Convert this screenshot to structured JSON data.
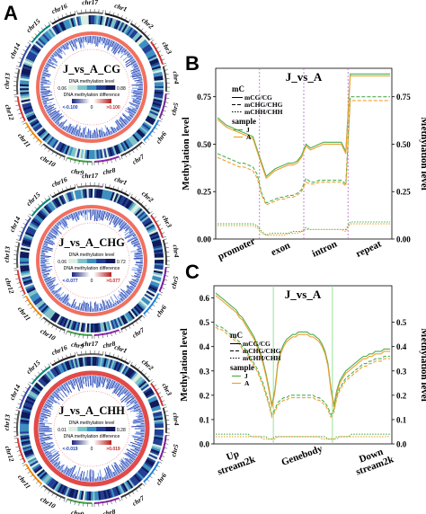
{
  "panel_a": {
    "letter": "A",
    "circos": [
      {
        "title": "J_vs_A_CG",
        "level_label": "DNA methylation level",
        "level_min": "0.06",
        "level_max": "0.88",
        "diff_label": "DNA methylation difference",
        "diff_min": "<-0.100",
        "diff_zero": "0",
        "diff_max": ">0.100",
        "level_colors": [
          "#dbeee1",
          "#7fc3c9",
          "#3c8fc0",
          "#223f95",
          "#101a5a"
        ]
      },
      {
        "title": "J_vs_A_CHG",
        "level_label": "DNA methylation level",
        "level_min": "0.06",
        "level_max": "0.72",
        "diff_label": "DNA methylation difference",
        "diff_min": "<-0.077",
        "diff_zero": "0",
        "diff_max": ">0.077",
        "level_colors": [
          "#dbeee1",
          "#7fc3c9",
          "#3c8fc0",
          "#223f95",
          "#101a5a"
        ]
      },
      {
        "title": "J_vs_A_CHH",
        "level_label": "DNA methylation level",
        "level_min": "0.01",
        "level_max": "0.28",
        "diff_label": "DNA methylation difference",
        "diff_min": "<-0.019",
        "diff_zero": "0",
        "diff_max": ">0.019",
        "level_colors": [
          "#dbeee1",
          "#7fc3c9",
          "#3c8fc0",
          "#223f95",
          "#101a5a"
        ]
      }
    ],
    "chromosomes": [
      "chr1",
      "chr2",
      "chr3",
      "chr4",
      "chr5",
      "chr6",
      "chr7",
      "chr8",
      "chr9",
      "chr10",
      "chr11",
      "chr12",
      "chr13",
      "chr14",
      "chr15",
      "chr16",
      "chr17"
    ]
  },
  "chart_data": [
    {
      "type": "line",
      "panel": "B",
      "title": "J_vs_A",
      "ylabel": "Methylation level",
      "y2label": "Methylation level",
      "ylim": [
        0,
        0.9
      ],
      "yticks": [
        "0.00",
        "0.25",
        "0.50",
        "0.75"
      ],
      "regions": [
        "promoter",
        "exon",
        "intron",
        "repeat"
      ],
      "x_points_per_region": 10,
      "legend": {
        "mc_title": "mC",
        "mc_entries": [
          "mCG/CG",
          "mCHG/CHG",
          "mCHH/CHH"
        ],
        "sample_title": "sample",
        "sample_entries": [
          "J",
          "A"
        ]
      },
      "colors": {
        "J": "#4caf50",
        "A": "#f0a030",
        "divider": "#b366cc"
      },
      "series": [
        {
          "context": "mCG",
          "sample": "J",
          "values": [
            0.64,
            0.62,
            0.6,
            0.59,
            0.58,
            0.57,
            0.56,
            0.55,
            0.54,
            0.47,
            0.4,
            0.33,
            0.35,
            0.37,
            0.38,
            0.39,
            0.4,
            0.4,
            0.41,
            0.44,
            0.5,
            0.48,
            0.49,
            0.5,
            0.51,
            0.51,
            0.51,
            0.51,
            0.51,
            0.46,
            0.87,
            0.87,
            0.87,
            0.87,
            0.87,
            0.87,
            0.87,
            0.87,
            0.87,
            0.87
          ]
        },
        {
          "context": "mCG",
          "sample": "A",
          "values": [
            0.63,
            0.61,
            0.59,
            0.58,
            0.57,
            0.56,
            0.55,
            0.54,
            0.53,
            0.46,
            0.39,
            0.32,
            0.34,
            0.36,
            0.37,
            0.38,
            0.39,
            0.39,
            0.4,
            0.43,
            0.49,
            0.47,
            0.48,
            0.49,
            0.5,
            0.5,
            0.5,
            0.5,
            0.5,
            0.45,
            0.86,
            0.86,
            0.86,
            0.86,
            0.86,
            0.86,
            0.86,
            0.86,
            0.86,
            0.86
          ]
        },
        {
          "context": "mCHG",
          "sample": "J",
          "values": [
            0.45,
            0.44,
            0.43,
            0.42,
            0.41,
            0.4,
            0.4,
            0.39,
            0.38,
            0.34,
            0.24,
            0.19,
            0.2,
            0.21,
            0.22,
            0.22,
            0.23,
            0.23,
            0.24,
            0.26,
            0.32,
            0.3,
            0.3,
            0.31,
            0.31,
            0.31,
            0.31,
            0.31,
            0.31,
            0.29,
            0.75,
            0.75,
            0.75,
            0.75,
            0.75,
            0.75,
            0.75,
            0.75,
            0.75,
            0.75
          ]
        },
        {
          "context": "mCHG",
          "sample": "A",
          "values": [
            0.43,
            0.42,
            0.41,
            0.4,
            0.39,
            0.38,
            0.38,
            0.37,
            0.36,
            0.32,
            0.23,
            0.18,
            0.19,
            0.2,
            0.21,
            0.21,
            0.22,
            0.22,
            0.23,
            0.25,
            0.3,
            0.29,
            0.29,
            0.3,
            0.3,
            0.3,
            0.3,
            0.3,
            0.3,
            0.28,
            0.73,
            0.73,
            0.73,
            0.73,
            0.73,
            0.73,
            0.73,
            0.73,
            0.73,
            0.73
          ]
        },
        {
          "context": "mCHH",
          "sample": "J",
          "values": [
            0.08,
            0.08,
            0.08,
            0.08,
            0.08,
            0.08,
            0.08,
            0.08,
            0.08,
            0.07,
            0.04,
            0.02,
            0.03,
            0.03,
            0.03,
            0.03,
            0.03,
            0.04,
            0.04,
            0.04,
            0.06,
            0.05,
            0.05,
            0.05,
            0.05,
            0.05,
            0.05,
            0.05,
            0.05,
            0.05,
            0.09,
            0.09,
            0.09,
            0.09,
            0.09,
            0.09,
            0.09,
            0.09,
            0.09,
            0.09
          ]
        },
        {
          "context": "mCHH",
          "sample": "A",
          "values": [
            0.07,
            0.07,
            0.07,
            0.07,
            0.07,
            0.07,
            0.07,
            0.07,
            0.07,
            0.06,
            0.03,
            0.02,
            0.02,
            0.02,
            0.02,
            0.02,
            0.03,
            0.03,
            0.03,
            0.04,
            0.05,
            0.05,
            0.05,
            0.05,
            0.05,
            0.05,
            0.05,
            0.05,
            0.05,
            0.04,
            0.08,
            0.08,
            0.08,
            0.08,
            0.08,
            0.08,
            0.08,
            0.08,
            0.08,
            0.08
          ]
        }
      ]
    },
    {
      "type": "line",
      "panel": "C",
      "title": "J_vs_A",
      "ylabel": "Methylation level",
      "y2label": "Methylation level",
      "ylim": [
        0,
        0.65
      ],
      "yticks": [
        "0.0",
        "0.1",
        "0.2",
        "0.3",
        "0.4",
        "0.5",
        "0.6"
      ],
      "y2ticks": [
        "0.0",
        "0.1",
        "0.2",
        "0.3",
        "0.4",
        "0.5"
      ],
      "x_labels": [
        "Up\nstream2k",
        "Genebody",
        "Down\nstream2k"
      ],
      "x_points": 60,
      "legend": {
        "mc_title": "mC",
        "mc_entries": [
          "mCG/CG",
          "mCHG/CHG",
          "mCHH/CHH"
        ],
        "sample_title": "sample",
        "sample_entries": [
          "J",
          "A"
        ]
      },
      "colors": {
        "J": "#4caf50",
        "A": "#f0a030",
        "divider": "#7ddc7d"
      },
      "series": [
        {
          "context": "mCG",
          "sample": "J",
          "values": [
            0.62,
            0.61,
            0.6,
            0.59,
            0.58,
            0.57,
            0.56,
            0.55,
            0.53,
            0.52,
            0.5,
            0.48,
            0.46,
            0.44,
            0.41,
            0.38,
            0.34,
            0.29,
            0.23,
            0.16,
            0.22,
            0.33,
            0.38,
            0.41,
            0.43,
            0.44,
            0.45,
            0.45,
            0.46,
            0.46,
            0.46,
            0.46,
            0.45,
            0.45,
            0.44,
            0.43,
            0.41,
            0.38,
            0.33,
            0.23,
            0.16,
            0.22,
            0.26,
            0.28,
            0.3,
            0.31,
            0.32,
            0.33,
            0.34,
            0.35,
            0.36,
            0.36,
            0.37,
            0.37,
            0.38,
            0.38,
            0.38,
            0.39,
            0.39,
            0.39
          ]
        },
        {
          "context": "mCG",
          "sample": "A",
          "values": [
            0.61,
            0.6,
            0.59,
            0.58,
            0.57,
            0.56,
            0.55,
            0.54,
            0.52,
            0.51,
            0.49,
            0.47,
            0.45,
            0.43,
            0.4,
            0.37,
            0.33,
            0.28,
            0.22,
            0.15,
            0.21,
            0.32,
            0.37,
            0.4,
            0.42,
            0.43,
            0.44,
            0.44,
            0.45,
            0.45,
            0.45,
            0.45,
            0.44,
            0.44,
            0.43,
            0.42,
            0.4,
            0.37,
            0.32,
            0.22,
            0.15,
            0.21,
            0.25,
            0.27,
            0.29,
            0.3,
            0.31,
            0.32,
            0.33,
            0.34,
            0.35,
            0.35,
            0.36,
            0.36,
            0.37,
            0.37,
            0.37,
            0.38,
            0.38,
            0.38
          ]
        },
        {
          "context": "mCHG",
          "sample": "J",
          "values": [
            0.49,
            0.48,
            0.48,
            0.47,
            0.46,
            0.45,
            0.44,
            0.43,
            0.42,
            0.4,
            0.39,
            0.37,
            0.35,
            0.33,
            0.31,
            0.28,
            0.25,
            0.21,
            0.17,
            0.12,
            0.14,
            0.17,
            0.18,
            0.19,
            0.19,
            0.2,
            0.2,
            0.2,
            0.2,
            0.2,
            0.2,
            0.2,
            0.2,
            0.2,
            0.19,
            0.19,
            0.18,
            0.17,
            0.15,
            0.12,
            0.14,
            0.2,
            0.23,
            0.25,
            0.27,
            0.28,
            0.29,
            0.3,
            0.31,
            0.32,
            0.33,
            0.33,
            0.34,
            0.34,
            0.35,
            0.35,
            0.35,
            0.36,
            0.36,
            0.36
          ]
        },
        {
          "context": "mCHG",
          "sample": "A",
          "values": [
            0.48,
            0.47,
            0.47,
            0.46,
            0.45,
            0.44,
            0.43,
            0.42,
            0.41,
            0.39,
            0.38,
            0.36,
            0.34,
            0.32,
            0.3,
            0.27,
            0.24,
            0.2,
            0.16,
            0.11,
            0.13,
            0.16,
            0.17,
            0.18,
            0.18,
            0.19,
            0.19,
            0.19,
            0.19,
            0.19,
            0.19,
            0.19,
            0.19,
            0.19,
            0.18,
            0.18,
            0.17,
            0.16,
            0.14,
            0.11,
            0.13,
            0.19,
            0.22,
            0.24,
            0.26,
            0.27,
            0.28,
            0.29,
            0.3,
            0.31,
            0.32,
            0.32,
            0.33,
            0.33,
            0.34,
            0.34,
            0.34,
            0.35,
            0.35,
            0.35
          ]
        },
        {
          "context": "mCHH",
          "sample": "J",
          "values": [
            0.04,
            0.04,
            0.04,
            0.04,
            0.04,
            0.04,
            0.04,
            0.04,
            0.04,
            0.04,
            0.04,
            0.04,
            0.03,
            0.03,
            0.03,
            0.03,
            0.03,
            0.03,
            0.02,
            0.02,
            0.03,
            0.03,
            0.03,
            0.03,
            0.03,
            0.03,
            0.03,
            0.03,
            0.03,
            0.03,
            0.03,
            0.03,
            0.03,
            0.03,
            0.03,
            0.03,
            0.03,
            0.03,
            0.02,
            0.02,
            0.02,
            0.03,
            0.03,
            0.03,
            0.03,
            0.03,
            0.04,
            0.04,
            0.04,
            0.04,
            0.04,
            0.04,
            0.04,
            0.04,
            0.04,
            0.04,
            0.04,
            0.04,
            0.04,
            0.04
          ]
        },
        {
          "context": "mCHH",
          "sample": "A",
          "values": [
            0.03,
            0.03,
            0.03,
            0.03,
            0.03,
            0.03,
            0.03,
            0.03,
            0.03,
            0.03,
            0.03,
            0.03,
            0.03,
            0.03,
            0.03,
            0.03,
            0.02,
            0.02,
            0.02,
            0.02,
            0.02,
            0.03,
            0.03,
            0.03,
            0.03,
            0.03,
            0.03,
            0.03,
            0.03,
            0.03,
            0.03,
            0.03,
            0.03,
            0.03,
            0.03,
            0.03,
            0.02,
            0.02,
            0.02,
            0.02,
            0.02,
            0.02,
            0.03,
            0.03,
            0.03,
            0.03,
            0.03,
            0.03,
            0.03,
            0.03,
            0.03,
            0.03,
            0.03,
            0.03,
            0.03,
            0.03,
            0.03,
            0.03,
            0.03,
            0.03
          ]
        }
      ]
    }
  ]
}
